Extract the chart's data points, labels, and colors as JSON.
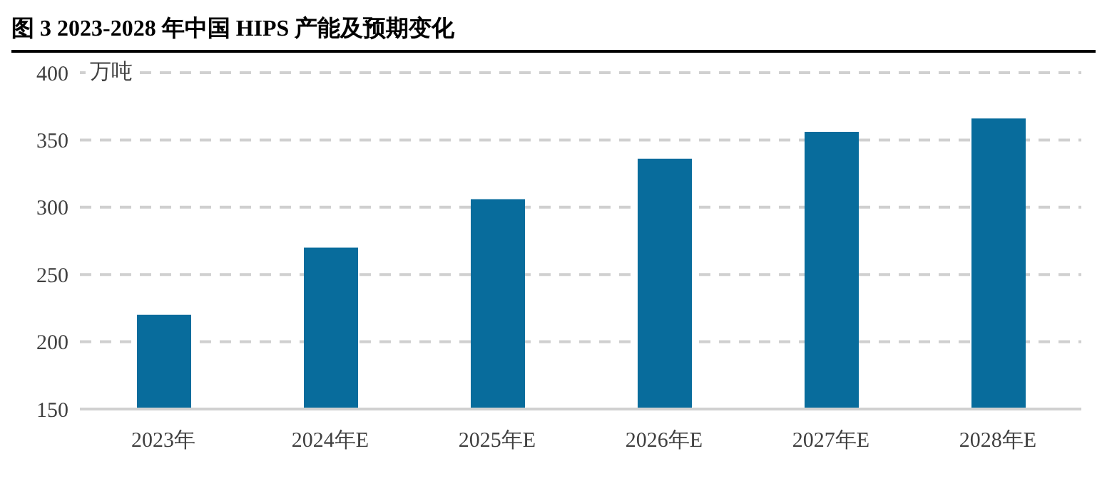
{
  "chart_data": {
    "type": "bar",
    "title": "图 3 2023-2028 年中国 HIPS 产能及预期变化",
    "ylabel": "万吨",
    "categories": [
      "2023年",
      "2024年E",
      "2025年E",
      "2026年E",
      "2027年E",
      "2028年E"
    ],
    "values": [
      220,
      270,
      306,
      336,
      356,
      366
    ],
    "color": "#086c9c",
    "ylim": [
      150,
      400
    ],
    "yticks": [
      150,
      200,
      250,
      300,
      350,
      400
    ],
    "grid": "y"
  }
}
